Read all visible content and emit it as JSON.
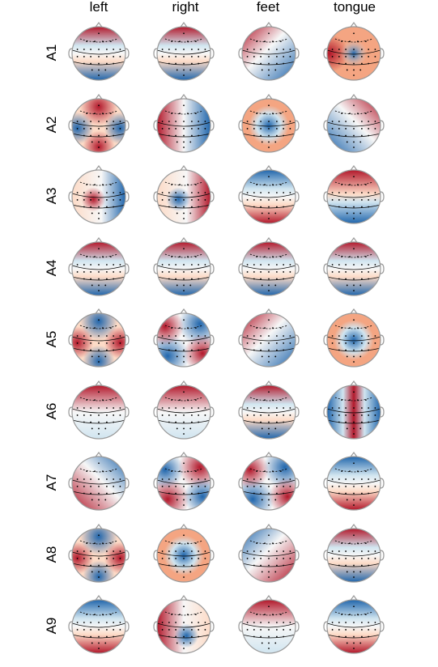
{
  "figure": {
    "conditions": [
      "left",
      "right",
      "feet",
      "tongue"
    ],
    "components": [
      "A1",
      "A2",
      "A3",
      "A4",
      "A5",
      "A6",
      "A7",
      "A8",
      "A9"
    ]
  },
  "colors": {
    "positive": "#b2182b",
    "negative": "#2166ac",
    "neutral": "#f7f7f7",
    "head_outline": "#999999",
    "contour": "#000000",
    "sensor": "#000000"
  },
  "maps": [
    [
      {
        "pattern": "front-low",
        "polarity": -1
      },
      {
        "pattern": "front-low",
        "polarity": -1
      },
      {
        "pattern": "diag-tl",
        "polarity": -1
      },
      {
        "pattern": "central-ring",
        "polarity": 1
      }
    ],
    [
      {
        "pattern": "x-shape",
        "polarity": 1
      },
      {
        "pattern": "lateral",
        "polarity": 1
      },
      {
        "pattern": "center-blue",
        "polarity": 1
      },
      {
        "pattern": "diag-tr",
        "polarity": -1
      }
    ],
    [
      {
        "pattern": "blob-left",
        "polarity": 1
      },
      {
        "pattern": "blob-left",
        "polarity": -1
      },
      {
        "pattern": "front-low",
        "polarity": 1
      },
      {
        "pattern": "wave",
        "polarity": 1
      }
    ],
    [
      {
        "pattern": "front-low",
        "polarity": -1
      },
      {
        "pattern": "front-low",
        "polarity": -1
      },
      {
        "pattern": "front-low",
        "polarity": -1
      },
      {
        "pattern": "front-low",
        "polarity": -1
      }
    ],
    [
      {
        "pattern": "x-shape",
        "polarity": -1
      },
      {
        "pattern": "quad",
        "polarity": 1
      },
      {
        "pattern": "diag-tl",
        "polarity": -1
      },
      {
        "pattern": "center-blue",
        "polarity": 1
      }
    ],
    [
      {
        "pattern": "top-red",
        "polarity": 1
      },
      {
        "pattern": "top-red",
        "polarity": 1
      },
      {
        "pattern": "front-low",
        "polarity": -1
      },
      {
        "pattern": "column",
        "polarity": 1
      }
    ],
    [
      {
        "pattern": "diag-tr",
        "polarity": 1
      },
      {
        "pattern": "quad",
        "polarity": -1
      },
      {
        "pattern": "quad",
        "polarity": 1
      },
      {
        "pattern": "front-low",
        "polarity": 1
      }
    ],
    [
      {
        "pattern": "x-shape",
        "polarity": -1
      },
      {
        "pattern": "center-blue",
        "polarity": 1
      },
      {
        "pattern": "diag-tl",
        "polarity": 1
      },
      {
        "pattern": "front-low",
        "polarity": -1
      }
    ],
    [
      {
        "pattern": "front-low",
        "polarity": 1
      },
      {
        "pattern": "blob-right",
        "polarity": 1
      },
      {
        "pattern": "top-red",
        "polarity": 1
      },
      {
        "pattern": "front-low",
        "polarity": 1
      }
    ]
  ]
}
